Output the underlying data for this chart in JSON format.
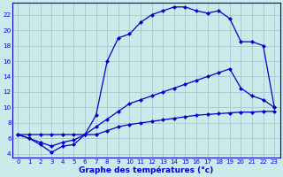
{
  "title": "Graphe des températures (°c)",
  "bg_color": "#cce9ec",
  "grid_color": "#aacdd2",
  "line_color": "#0000cc",
  "xlim": [
    -0.5,
    23.5
  ],
  "ylim": [
    3.5,
    23.5
  ],
  "xticks": [
    0,
    1,
    2,
    3,
    4,
    5,
    6,
    7,
    8,
    9,
    10,
    11,
    12,
    13,
    14,
    15,
    16,
    17,
    18,
    19,
    20,
    21,
    22,
    23
  ],
  "yticks": [
    4,
    6,
    8,
    10,
    12,
    14,
    16,
    18,
    20,
    22
  ],
  "line1_x": [
    0,
    1,
    2,
    3,
    4,
    5,
    6,
    7,
    8,
    9,
    10,
    11,
    12,
    13,
    14,
    15,
    16,
    17,
    18,
    19,
    20,
    21,
    22,
    23
  ],
  "line1_y": [
    6.5,
    6.5,
    6.5,
    6.5,
    6.5,
    6.5,
    6.5,
    6.5,
    7.0,
    7.5,
    7.8,
    8.0,
    8.2,
    8.4,
    8.6,
    8.8,
    9.0,
    9.1,
    9.2,
    9.3,
    9.4,
    9.4,
    9.5,
    9.5
  ],
  "line2_x": [
    0,
    1,
    2,
    3,
    4,
    5,
    6,
    7,
    8,
    9,
    10,
    11,
    12,
    13,
    14,
    15,
    16,
    17,
    18,
    19,
    20,
    21,
    22,
    23
  ],
  "line2_y": [
    6.5,
    6.0,
    5.5,
    5.0,
    5.5,
    5.8,
    6.5,
    7.5,
    8.5,
    9.5,
    10.5,
    11.0,
    11.5,
    12.0,
    12.5,
    13.0,
    13.5,
    14.0,
    14.5,
    15.0,
    12.5,
    11.5,
    11.0,
    10.0
  ],
  "line3_x": [
    0,
    1,
    2,
    3,
    4,
    5,
    6,
    7,
    8,
    9,
    10,
    11,
    12,
    13,
    14,
    15,
    16,
    17,
    18,
    19,
    20,
    21,
    22,
    23
  ],
  "line3_y": [
    6.5,
    6.0,
    5.2,
    4.2,
    5.0,
    5.2,
    6.5,
    9.0,
    16.0,
    19.0,
    19.5,
    21.0,
    22.0,
    22.5,
    23.0,
    23.0,
    22.5,
    22.2,
    22.5,
    21.5,
    18.5,
    18.5,
    18.0,
    10.0
  ]
}
